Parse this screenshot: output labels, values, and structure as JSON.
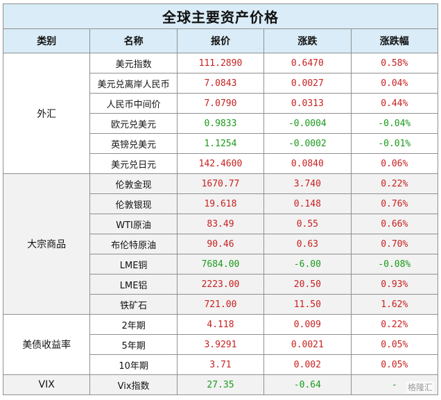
{
  "title": "全球主要资产价格",
  "headers": {
    "category": "类别",
    "name": "名称",
    "price": "报价",
    "change": "涨跌",
    "pct": "涨跌幅"
  },
  "groups": [
    {
      "category": "外汇",
      "rows": [
        {
          "name": "美元指数",
          "price": "111.2890",
          "change": "0.6470",
          "pct": "0.58%",
          "dir": "up"
        },
        {
          "name": "美元兑离岸人民币",
          "price": "7.0843",
          "change": "0.0027",
          "pct": "0.04%",
          "dir": "up"
        },
        {
          "name": "人民币中间价",
          "price": "7.0790",
          "change": "0.0313",
          "pct": "0.44%",
          "dir": "up"
        },
        {
          "name": "欧元兑美元",
          "price": "0.9833",
          "change": "-0.0004",
          "pct": "-0.04%",
          "dir": "down"
        },
        {
          "name": "英镑兑美元",
          "price": "1.1254",
          "change": "-0.0002",
          "pct": "-0.01%",
          "dir": "down"
        },
        {
          "name": "美元兑日元",
          "price": "142.4600",
          "change": "0.0840",
          "pct": "0.06%",
          "dir": "up"
        }
      ]
    },
    {
      "category": "大宗商品",
      "rows": [
        {
          "name": "伦敦金现",
          "price": "1670.77",
          "change": "3.740",
          "pct": "0.22%",
          "dir": "up"
        },
        {
          "name": "伦敦银现",
          "price": "19.618",
          "change": "0.148",
          "pct": "0.76%",
          "dir": "up"
        },
        {
          "name": "WTI原油",
          "price": "83.49",
          "change": "0.55",
          "pct": "0.66%",
          "dir": "up"
        },
        {
          "name": "布伦特原油",
          "price": "90.46",
          "change": "0.63",
          "pct": "0.70%",
          "dir": "up"
        },
        {
          "name": "LME铜",
          "price": "7684.00",
          "change": "-6.00",
          "pct": "-0.08%",
          "dir": "down"
        },
        {
          "name": "LME铝",
          "price": "2223.00",
          "change": "20.50",
          "pct": "0.93%",
          "dir": "up"
        },
        {
          "name": "铁矿石",
          "price": "721.00",
          "change": "11.50",
          "pct": "1.62%",
          "dir": "up"
        }
      ]
    },
    {
      "category": "美债收益率",
      "rows": [
        {
          "name": "2年期",
          "price": "4.118",
          "change": "0.009",
          "pct": "0.22%",
          "dir": "up"
        },
        {
          "name": "5年期",
          "price": "3.9291",
          "change": "0.0021",
          "pct": "0.05%",
          "dir": "up"
        },
        {
          "name": "10年期",
          "price": "3.71",
          "change": "0.002",
          "pct": "0.05%",
          "dir": "up"
        }
      ]
    },
    {
      "category": "VIX",
      "rows": [
        {
          "name": "Vix指数",
          "price": "27.35",
          "change": "-0.64",
          "pct": "-",
          "dir": "down"
        }
      ]
    }
  ],
  "watermark": "格隆汇",
  "colors": {
    "up": "#c81e1e",
    "down": "#1a9a1a",
    "header_bg": "#d9ecf7",
    "alt_bg": "#f2f2f2"
  }
}
